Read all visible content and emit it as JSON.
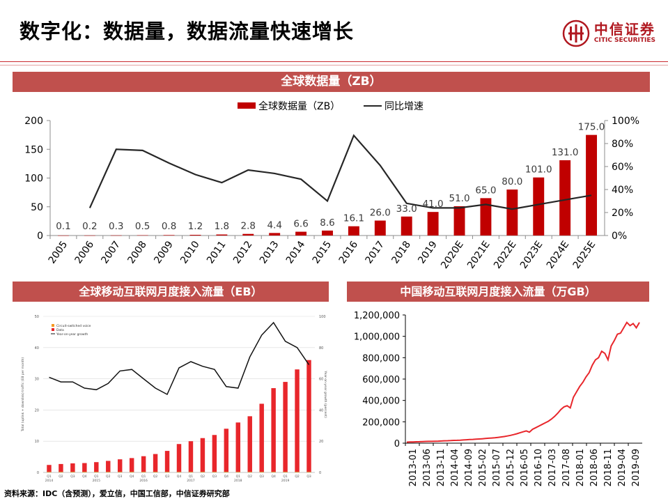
{
  "header": {
    "title": "数字化：数据量，数据流量快速增长"
  },
  "logo": {
    "name_cn": "中信证券",
    "name_en": "CITIC SECURITIES"
  },
  "colors": {
    "accent": "#c0504d",
    "bar": "#c00000",
    "line": "#262626",
    "brand": "#b0171f"
  },
  "source": "资料来源：IDC（含预测），爱立信，中国工信部，中信证券研究部",
  "chart_data": [
    {
      "type": "bar",
      "title": "全球数据量（ZB）",
      "categories": [
        "2005",
        "2006",
        "2007",
        "2008",
        "2009",
        "2010",
        "2011",
        "2012",
        "2013",
        "2014",
        "2015",
        "2016",
        "2017",
        "2018",
        "2019",
        "2020E",
        "2021E",
        "2022E",
        "2023E",
        "2024E",
        "2025E"
      ],
      "series": [
        {
          "name": "全球数据量（ZB）",
          "axis": "left",
          "values": [
            0.1,
            0.2,
            0.3,
            0.5,
            0.8,
            1.2,
            1.8,
            2.8,
            4.4,
            6.6,
            8.6,
            16.1,
            26.0,
            33.0,
            41.0,
            51.0,
            65.0,
            80.0,
            101.0,
            131.0,
            175.0
          ],
          "labels": [
            "0.1",
            "0.2",
            "0.3",
            "0.5",
            "0.8",
            "1.2",
            "1.8",
            "2.8",
            "4.4",
            "6.6",
            "8.6",
            "16.1",
            "26.0",
            "33.0",
            "41.0",
            "51.0",
            "65.0",
            "80.0",
            "101.0",
            "131.0",
            "175.0"
          ]
        },
        {
          "name": "同比增速",
          "type": "line",
          "axis": "right",
          "values": [
            null,
            24,
            75,
            74,
            63,
            53,
            46,
            57,
            54,
            49,
            30,
            87,
            61,
            28,
            24,
            24,
            27,
            23,
            27,
            31,
            35
          ]
        }
      ],
      "legend_position": "top-center",
      "ylim": [
        0,
        200
      ],
      "yticks": [
        "0",
        "50",
        "100",
        "150",
        "200"
      ],
      "y2lim": [
        0,
        100
      ],
      "y2ticks": [
        "0%",
        "20%",
        "40%",
        "60%",
        "80%",
        "100%"
      ],
      "grid": false
    },
    {
      "type": "bar",
      "title": "全球移动互联网月度接入流量（EB）",
      "categories": [
        "Q1",
        "Q2",
        "Q3",
        "Q4",
        "Q1",
        "Q2",
        "Q3",
        "Q4",
        "Q1",
        "Q2",
        "Q3",
        "Q4",
        "Q1",
        "Q2",
        "Q3",
        "Q4",
        "Q1",
        "Q2",
        "Q3",
        "Q4",
        "Q1",
        "Q2",
        "Q3"
      ],
      "year_labels": [
        "2014",
        "2015",
        "2016",
        "2017",
        "2018",
        "2019"
      ],
      "series": [
        {
          "name": "Data",
          "axis": "left",
          "values": [
            2.4,
            2.7,
            2.9,
            3.0,
            3.3,
            3.7,
            4.2,
            4.6,
            5.2,
            5.9,
            6.9,
            9.1,
            10.0,
            11.0,
            12.0,
            14.0,
            16.0,
            18.0,
            22.0,
            27.0,
            29.0,
            33.0,
            36.0
          ]
        },
        {
          "name": "Circuit-switched voice",
          "axis": "left",
          "values": [
            0.2,
            0.2,
            0.2,
            0.2,
            0.2,
            0.2,
            0.2,
            0.2,
            0.2,
            0.2,
            0.2,
            0.2,
            0.2,
            0.2,
            0.2,
            0.2,
            0.2,
            0.2,
            0.2,
            0.2,
            0.2,
            0.2,
            0.2
          ]
        },
        {
          "name": "Year-on-year growth",
          "type": "line",
          "axis": "right",
          "values": [
            61,
            58,
            58,
            54,
            53,
            57,
            65,
            66,
            60,
            54,
            50,
            67,
            71,
            68,
            66,
            55,
            54,
            74,
            88,
            96,
            84,
            80,
            69
          ]
        }
      ],
      "ylabel": "Total (uplink + downlink) traffic (EB per month)",
      "y2label": "Year-on-year growth (percent)",
      "ylim": [
        0,
        50
      ],
      "yticks": [
        "0",
        "10",
        "20",
        "30",
        "40",
        "50"
      ],
      "y2lim": [
        0,
        100
      ],
      "y2ticks": [
        "0",
        "20",
        "40",
        "60",
        "80",
        "100"
      ],
      "legend_position": "top-left"
    },
    {
      "type": "line",
      "title": "中国移动互联网月度接入流量（万GB）",
      "x_ticks": [
        "2013-01",
        "2013-06",
        "2013-11",
        "2014-04",
        "2014-09",
        "2015-02",
        "2015-07",
        "2015-12",
        "2016-05",
        "2016-10",
        "2017-03",
        "2017-08",
        "2018-01",
        "2018-06",
        "2018-11",
        "2019-04",
        "2019-09"
      ],
      "values": [
        10000,
        11000,
        12000,
        13000,
        14000,
        15000,
        16000,
        17000,
        17000,
        18000,
        19000,
        20000,
        22000,
        23000,
        24000,
        26000,
        27000,
        28000,
        30000,
        32000,
        34000,
        35000,
        37000,
        39000,
        41000,
        44000,
        46000,
        48000,
        50000,
        54000,
        58000,
        62000,
        67000,
        73000,
        80000,
        88000,
        97000,
        106000,
        115000,
        103000,
        130000,
        145000,
        160000,
        175000,
        190000,
        205000,
        225000,
        250000,
        280000,
        315000,
        340000,
        350000,
        330000,
        430000,
        480000,
        530000,
        570000,
        620000,
        660000,
        730000,
        780000,
        800000,
        860000,
        840000,
        780000,
        910000,
        960000,
        1020000,
        1030000,
        1080000,
        1130000,
        1100000,
        1120000,
        1080000,
        1130000
      ],
      "ylim": [
        0,
        1200000
      ],
      "yticks": [
        "0",
        "200,000",
        "400,000",
        "600,000",
        "800,000",
        "1,000,000",
        "1,200,000"
      ],
      "grid": false
    }
  ]
}
